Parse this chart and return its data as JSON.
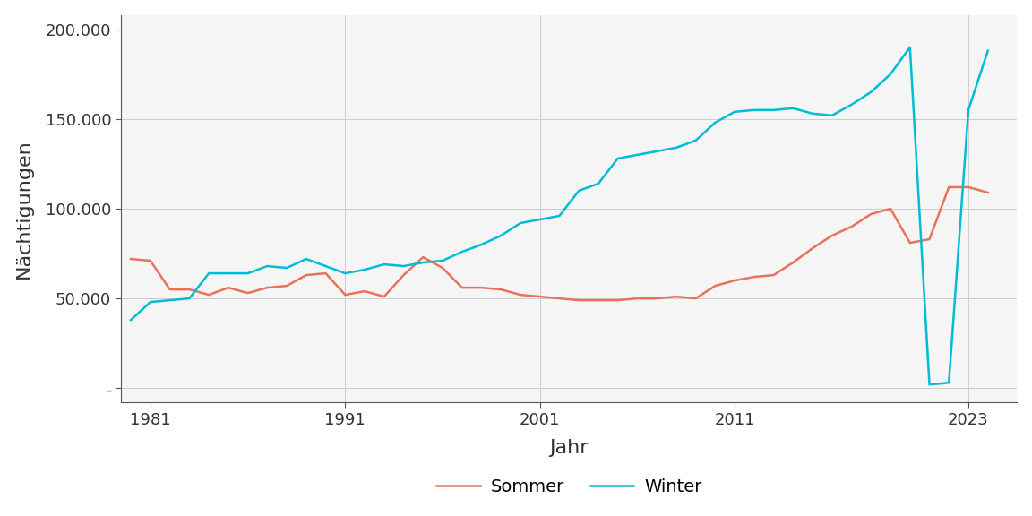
{
  "title": "",
  "xlabel": "Jahr",
  "ylabel": "Nächtigungen",
  "background_color": "#ffffff",
  "plot_background_color": "#f5f5f5",
  "grid_color": "#cccccc",
  "sommer_color": "#E8735A",
  "winter_color": "#00BCD4",
  "legend_labels": [
    "Sommer",
    "Winter"
  ],
  "xlim": [
    1979.5,
    2025.5
  ],
  "ylim": [
    -8000,
    208000
  ],
  "yticks": [
    0,
    50000,
    100000,
    150000,
    200000
  ],
  "ytick_labels": [
    "-",
    "50.000",
    "100.000",
    "150.000",
    "200.000"
  ],
  "xticks": [
    1981,
    1991,
    2001,
    2011,
    2023
  ],
  "sommer": {
    "years": [
      1980,
      1981,
      1982,
      1983,
      1984,
      1985,
      1986,
      1987,
      1988,
      1989,
      1990,
      1991,
      1992,
      1993,
      1994,
      1995,
      1996,
      1997,
      1998,
      1999,
      2000,
      2001,
      2002,
      2003,
      2004,
      2005,
      2006,
      2007,
      2008,
      2009,
      2010,
      2011,
      2012,
      2013,
      2014,
      2015,
      2016,
      2017,
      2018,
      2019,
      2020,
      2021,
      2022,
      2023,
      2024
    ],
    "values": [
      72000,
      71000,
      55000,
      55000,
      52000,
      56000,
      53000,
      56000,
      57000,
      63000,
      64000,
      52000,
      54000,
      51000,
      63000,
      73000,
      67000,
      56000,
      56000,
      55000,
      52000,
      51000,
      50000,
      49000,
      49000,
      49000,
      50000,
      50000,
      51000,
      50000,
      57000,
      60000,
      62000,
      63000,
      70000,
      78000,
      85000,
      90000,
      97000,
      100000,
      81000,
      83000,
      112000,
      112000,
      109000
    ]
  },
  "winter": {
    "years": [
      1980,
      1981,
      1982,
      1983,
      1984,
      1985,
      1986,
      1987,
      1988,
      1989,
      1990,
      1991,
      1992,
      1993,
      1994,
      1995,
      1996,
      1997,
      1998,
      1999,
      2000,
      2001,
      2002,
      2003,
      2004,
      2005,
      2006,
      2007,
      2008,
      2009,
      2010,
      2011,
      2012,
      2013,
      2014,
      2015,
      2016,
      2017,
      2018,
      2019,
      2020,
      2021,
      2022,
      2023,
      2024
    ],
    "values": [
      38000,
      48000,
      49000,
      50000,
      64000,
      64000,
      64000,
      68000,
      67000,
      72000,
      68000,
      64000,
      66000,
      69000,
      68000,
      70000,
      71000,
      76000,
      80000,
      85000,
      92000,
      94000,
      96000,
      110000,
      114000,
      128000,
      130000,
      132000,
      134000,
      138000,
      148000,
      154000,
      155000,
      155000,
      156000,
      153000,
      152000,
      158000,
      165000,
      175000,
      190000,
      2000,
      3000,
      155000,
      188000
    ]
  },
  "line_width": 1.8,
  "ylabel_fontsize": 16,
  "xlabel_fontsize": 16,
  "tick_fontsize": 13
}
